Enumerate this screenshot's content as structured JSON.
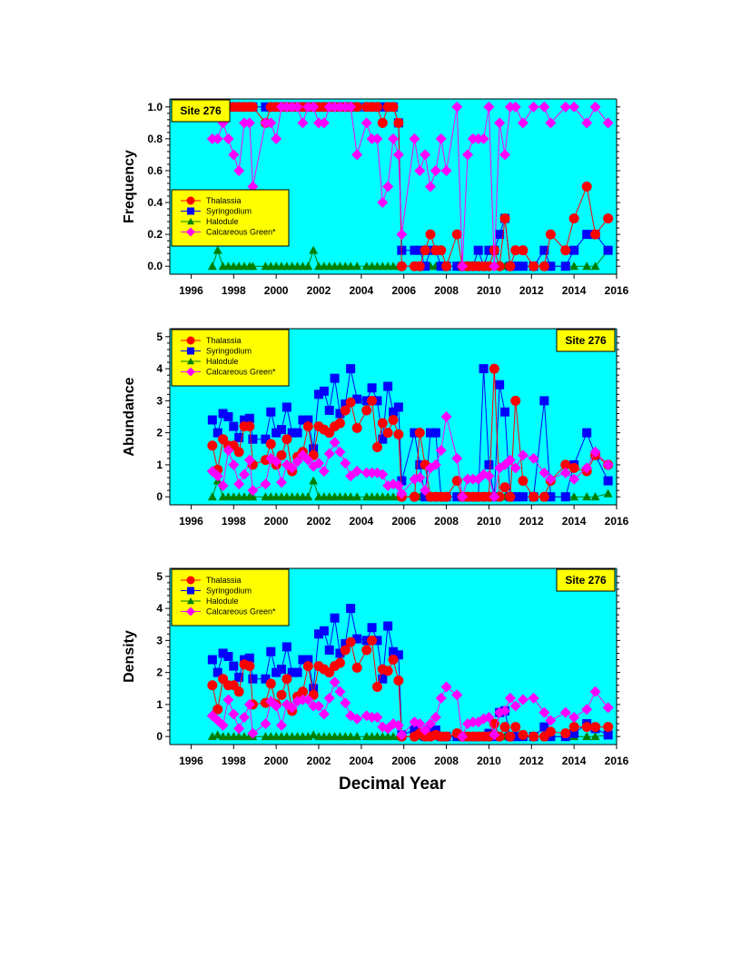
{
  "page": {
    "xlabel": "Decimal Year"
  },
  "legend_entries": [
    "Thalassia",
    "Syringodium",
    "Halodule",
    "Calcareous Green*"
  ],
  "colors": {
    "background": "#00ffff",
    "legend_bg": "#ffff00",
    "thalassia": "#ff0000",
    "syringodium": "#0000ff",
    "halodule": "#008000",
    "calcareous": "#ff00ff"
  },
  "chart_data": [
    {
      "type": "line",
      "title": "Site 276",
      "xlabel": "",
      "ylabel": "Frequency",
      "xlim": [
        1995,
        2016
      ],
      "ylim": [
        -0.05,
        1.05
      ],
      "xticks": [
        "1996",
        "1998",
        "2000",
        "2002",
        "2004",
        "2006",
        "2008",
        "2010",
        "2012",
        "2014",
        "2016"
      ],
      "yticks": [
        "0.0",
        "0.2",
        "0.4",
        "0.6",
        "0.8",
        "1.0"
      ],
      "legend_position": "middle-left",
      "site_label_position": "top-left",
      "x": [
        1997.0,
        1997.25,
        1997.5,
        1997.75,
        1998.0,
        1998.25,
        1998.5,
        1998.75,
        1998.9,
        1999.5,
        1999.75,
        2000.0,
        2000.25,
        2000.5,
        2000.75,
        2001.0,
        2001.25,
        2001.5,
        2001.75,
        2002.0,
        2002.25,
        2002.5,
        2002.75,
        2003.0,
        2003.25,
        2003.5,
        2003.8,
        2004.25,
        2004.5,
        2004.75,
        2005.0,
        2005.25,
        2005.5,
        2005.75,
        2005.9,
        2006.5,
        2006.75,
        2007.0,
        2007.25,
        2007.5,
        2007.75,
        2008.0,
        2008.5,
        2008.75,
        2009.0,
        2009.25,
        2009.5,
        2009.75,
        2010.0,
        2010.25,
        2010.5,
        2010.75,
        2011.0,
        2011.25,
        2011.6,
        2012.1,
        2012.6,
        2012.9,
        2013.6,
        2014.0,
        2014.6,
        2015.0,
        2015.6
      ],
      "series": [
        {
          "name": "Thalassia",
          "values": [
            1,
            1,
            1,
            1,
            1,
            1,
            1,
            1,
            1,
            0.9,
            1,
            1,
            1,
            1,
            1,
            1,
            1,
            1,
            1,
            1,
            1,
            1,
            1,
            1,
            1,
            1,
            1,
            1,
            1,
            1,
            0.9,
            1,
            1,
            0.9,
            0,
            0,
            0,
            0.1,
            0.2,
            0.1,
            0.1,
            0,
            0.2,
            0,
            0,
            0,
            0,
            0,
            0,
            0.1,
            0,
            0.3,
            0,
            0.1,
            0.1,
            0,
            0,
            0.2,
            0.1,
            0.3,
            0.5,
            0.2,
            0.3
          ]
        },
        {
          "name": "Syringodium",
          "values": [
            1,
            1,
            1,
            1,
            1,
            1,
            1,
            1,
            1,
            1,
            1,
            1,
            1,
            1,
            1,
            1,
            1,
            1,
            1,
            1,
            1,
            1,
            1,
            1,
            1,
            1,
            1,
            1,
            1,
            1,
            1,
            1,
            1,
            0.9,
            0.1,
            0.1,
            0.1,
            0,
            0.1,
            0.1,
            0,
            0,
            0,
            0,
            0,
            0,
            0.1,
            0,
            0.1,
            0.1,
            0.2,
            0.3,
            0,
            0,
            0,
            0,
            0.1,
            0,
            0,
            0.1,
            0.2,
            0.2,
            0.1
          ]
        },
        {
          "name": "Halodule",
          "values": [
            0,
            0.1,
            0,
            0,
            0,
            0,
            0,
            0,
            0,
            0,
            0,
            0,
            0,
            0,
            0,
            0,
            0,
            0,
            0.1,
            0,
            0,
            0,
            0,
            0,
            0,
            0,
            0,
            0,
            0,
            0,
            0,
            0,
            0,
            0,
            0,
            0,
            0,
            0,
            0,
            0,
            0,
            0,
            0,
            0,
            0,
            0,
            0,
            0,
            0,
            0,
            0,
            0,
            0,
            0,
            0,
            0,
            0,
            0,
            0,
            0,
            0,
            0,
            0.1
          ]
        },
        {
          "name": "Calcareous Green*",
          "values": [
            0.8,
            0.8,
            0.9,
            0.8,
            0.7,
            0.6,
            0.9,
            0.9,
            0.5,
            0.9,
            0.9,
            0.8,
            1,
            1,
            1,
            1,
            0.9,
            1,
            1,
            0.9,
            0.9,
            1,
            1,
            1,
            1,
            1,
            0.7,
            0.9,
            0.8,
            0.8,
            0.4,
            0.5,
            0.8,
            0.7,
            0.2,
            0.8,
            0.6,
            0.7,
            0.5,
            0.6,
            0.8,
            0.6,
            1,
            0,
            0.7,
            0.8,
            0.8,
            0.8,
            1,
            0,
            0.9,
            0.7,
            1,
            1,
            0.9,
            1,
            1,
            0.9,
            1,
            1,
            0.9,
            1,
            0.9
          ]
        }
      ]
    },
    {
      "type": "line",
      "title": "Site 276",
      "xlabel": "",
      "ylabel": "Abundance",
      "xlim": [
        1995,
        2016
      ],
      "ylim": [
        -0.25,
        5.25
      ],
      "xticks": [
        "1996",
        "1998",
        "2000",
        "2002",
        "2004",
        "2006",
        "2008",
        "2010",
        "2012",
        "2014",
        "2016"
      ],
      "yticks": [
        "0",
        "1",
        "2",
        "3",
        "4",
        "5"
      ],
      "legend_position": "top-left",
      "site_label_position": "top-right",
      "x": [
        1997.0,
        1997.25,
        1997.5,
        1997.75,
        1998.0,
        1998.25,
        1998.5,
        1998.75,
        1998.9,
        1999.5,
        1999.75,
        2000.0,
        2000.25,
        2000.5,
        2000.75,
        2001.0,
        2001.25,
        2001.5,
        2001.75,
        2002.0,
        2002.25,
        2002.5,
        2002.75,
        2003.0,
        2003.25,
        2003.5,
        2003.8,
        2004.25,
        2004.5,
        2004.75,
        2005.0,
        2005.25,
        2005.5,
        2005.75,
        2005.9,
        2006.5,
        2006.75,
        2007.0,
        2007.25,
        2007.5,
        2007.75,
        2008.0,
        2008.5,
        2008.75,
        2009.0,
        2009.25,
        2009.5,
        2009.75,
        2010.0,
        2010.25,
        2010.5,
        2010.75,
        2011.0,
        2011.25,
        2011.6,
        2012.1,
        2012.6,
        2012.9,
        2013.6,
        2014.0,
        2014.6,
        2015.0,
        2015.6
      ],
      "series": [
        {
          "name": "Thalassia",
          "values": [
            1.6,
            0.85,
            1.8,
            1.6,
            1.6,
            1.4,
            2.2,
            2.2,
            1.0,
            1.15,
            1.65,
            1.0,
            1.3,
            1.8,
            0.8,
            1.25,
            1.4,
            2.2,
            1.3,
            2.2,
            2.1,
            2.0,
            2.2,
            2.3,
            2.7,
            2.95,
            2.15,
            2.7,
            3.0,
            1.55,
            2.3,
            2.0,
            2.4,
            1.95,
            0,
            0,
            2.0,
            1.0,
            0,
            0,
            0,
            0,
            0.5,
            0,
            0,
            0,
            0,
            0,
            0,
            4.0,
            0,
            0.3,
            0,
            3.0,
            0.5,
            0,
            0,
            0.5,
            1.0,
            0.9,
            0.8,
            1.3,
            1.0
          ]
        },
        {
          "name": "Syringodium",
          "values": [
            2.4,
            2.0,
            2.6,
            2.5,
            2.2,
            1.85,
            2.4,
            2.45,
            1.8,
            1.8,
            2.65,
            2.0,
            2.1,
            2.8,
            2.0,
            2.0,
            2.4,
            2.4,
            1.5,
            3.2,
            3.3,
            2.7,
            3.7,
            2.6,
            2.9,
            4.0,
            3.05,
            3.0,
            3.4,
            3.0,
            1.8,
            3.45,
            2.65,
            2.8,
            0.5,
            2.0,
            1.0,
            0,
            2.0,
            2.0,
            0,
            0,
            0,
            0,
            0,
            0,
            0,
            4.0,
            1.0,
            0,
            3.5,
            2.65,
            0,
            0,
            0,
            0,
            3.0,
            0,
            0,
            1.0,
            2.0,
            1.3,
            0.5
          ]
        },
        {
          "name": "Halodule",
          "values": [
            0,
            0.5,
            0,
            0,
            0,
            0,
            0,
            0,
            0,
            0,
            0,
            0,
            0,
            0,
            0,
            0,
            0,
            0,
            0.5,
            0,
            0,
            0,
            0,
            0,
            0,
            0,
            0,
            0,
            0,
            0,
            0,
            0,
            0,
            0,
            0,
            0,
            0,
            0,
            0,
            0,
            0,
            0,
            0,
            0,
            0,
            0,
            0,
            0,
            0,
            0,
            0,
            0,
            0,
            0,
            0,
            0,
            0,
            0,
            0,
            0,
            0,
            0,
            0.1
          ]
        },
        {
          "name": "Calcareous Green*",
          "values": [
            0.8,
            0.65,
            0.35,
            1.45,
            1.0,
            0.4,
            0.7,
            1.15,
            0.2,
            0.4,
            1.2,
            1.1,
            0.45,
            1.0,
            0.9,
            1.1,
            1.3,
            1.15,
            0.95,
            1.05,
            0.8,
            1.35,
            1.7,
            1.4,
            1.05,
            0.65,
            0.8,
            0.75,
            0.75,
            0.75,
            0.7,
            0.35,
            0.4,
            0.35,
            0.1,
            0.55,
            0.6,
            0.2,
            0.9,
            1.0,
            1.45,
            2.5,
            1.2,
            0,
            0.55,
            0.55,
            0.55,
            0.7,
            0.65,
            0,
            0.9,
            1.0,
            1.15,
            0.9,
            1.3,
            1.2,
            0.75,
            0.55,
            0.75,
            0.55,
            0.9,
            1.4,
            1.0
          ]
        }
      ]
    },
    {
      "type": "line",
      "title": "Site 276",
      "xlabel": "Decimal Year",
      "ylabel": "Density",
      "xlim": [
        1995,
        2016
      ],
      "ylim": [
        -0.25,
        5.25
      ],
      "xticks": [
        "1996",
        "1998",
        "2000",
        "2002",
        "2004",
        "2006",
        "2008",
        "2010",
        "2012",
        "2014",
        "2016"
      ],
      "yticks": [
        "0",
        "1",
        "2",
        "3",
        "4",
        "5"
      ],
      "legend_position": "top-left",
      "site_label_position": "top-right",
      "x": [
        1997.0,
        1997.25,
        1997.5,
        1997.75,
        1998.0,
        1998.25,
        1998.5,
        1998.75,
        1998.9,
        1999.5,
        1999.75,
        2000.0,
        2000.25,
        2000.5,
        2000.75,
        2001.0,
        2001.25,
        2001.5,
        2001.75,
        2002.0,
        2002.25,
        2002.5,
        2002.75,
        2003.0,
        2003.25,
        2003.5,
        2003.8,
        2004.25,
        2004.5,
        2004.75,
        2005.0,
        2005.25,
        2005.5,
        2005.75,
        2005.9,
        2006.5,
        2006.75,
        2007.0,
        2007.25,
        2007.5,
        2007.75,
        2008.0,
        2008.5,
        2008.75,
        2009.0,
        2009.25,
        2009.5,
        2009.75,
        2010.0,
        2010.25,
        2010.5,
        2010.75,
        2011.0,
        2011.25,
        2011.6,
        2012.1,
        2012.6,
        2012.9,
        2013.6,
        2014.0,
        2014.6,
        2015.0,
        2015.6
      ],
      "series": [
        {
          "name": "Thalassia",
          "values": [
            1.6,
            0.85,
            1.8,
            1.6,
            1.6,
            1.4,
            2.25,
            2.2,
            1.0,
            1.05,
            1.65,
            1.0,
            1.3,
            1.8,
            0.8,
            1.25,
            1.4,
            2.2,
            1.3,
            2.2,
            2.1,
            2.0,
            2.2,
            2.3,
            2.7,
            2.95,
            2.15,
            2.7,
            3.0,
            1.55,
            2.1,
            2.05,
            2.4,
            1.75,
            0,
            0,
            0.1,
            0,
            0,
            0.05,
            0,
            0,
            0.1,
            0,
            0,
            0,
            0,
            0,
            0,
            0.4,
            0,
            0.3,
            0,
            0.3,
            0.05,
            0,
            0,
            0.15,
            0.1,
            0.3,
            0.3,
            0.3,
            0.3
          ]
        },
        {
          "name": "Syringodium",
          "values": [
            2.4,
            2.0,
            2.6,
            2.5,
            2.2,
            1.85,
            2.4,
            2.45,
            1.8,
            1.8,
            2.65,
            2.0,
            2.1,
            2.8,
            2.0,
            2.0,
            2.4,
            2.4,
            1.5,
            3.2,
            3.3,
            2.7,
            3.7,
            2.6,
            2.9,
            4.0,
            3.05,
            3.0,
            3.4,
            3.0,
            1.8,
            3.45,
            2.65,
            2.55,
            0.05,
            0.2,
            0.1,
            0,
            0.2,
            0.2,
            0,
            0,
            0,
            0,
            0,
            0,
            0,
            0,
            0.1,
            0,
            0.75,
            0.8,
            0,
            0,
            0,
            0,
            0.3,
            0,
            0,
            0.1,
            0.4,
            0.25,
            0.05
          ]
        },
        {
          "name": "Halodule",
          "values": [
            0,
            0.05,
            0,
            0,
            0,
            0,
            0,
            0,
            0,
            0,
            0,
            0,
            0,
            0,
            0,
            0,
            0,
            0,
            0.05,
            0,
            0,
            0,
            0,
            0,
            0,
            0,
            0,
            0,
            0,
            0,
            0,
            0,
            0,
            0,
            0,
            0,
            0,
            0,
            0,
            0,
            0,
            0,
            0,
            0,
            0,
            0,
            0,
            0,
            0,
            0,
            0,
            0,
            0,
            0,
            0,
            0,
            0,
            0,
            0,
            0,
            0,
            0,
            0.05
          ]
        },
        {
          "name": "Calcareous Green*",
          "values": [
            0.65,
            0.5,
            0.35,
            1.15,
            0.7,
            0.25,
            0.6,
            1.0,
            0.1,
            0.4,
            1.1,
            0.95,
            0.35,
            1.0,
            0.9,
            1.1,
            1.15,
            1.15,
            0.95,
            0.95,
            0.7,
            1.2,
            1.7,
            1.4,
            1.05,
            0.65,
            0.55,
            0.65,
            0.6,
            0.6,
            0.3,
            0.25,
            0.4,
            0.35,
            0.05,
            0.45,
            0.4,
            0.2,
            0.4,
            0.6,
            1.2,
            1.55,
            1.3,
            0,
            0.4,
            0.45,
            0.45,
            0.55,
            0.6,
            0.05,
            0.75,
            0.8,
            1.2,
            0.95,
            1.15,
            1.2,
            0.75,
            0.5,
            0.75,
            0.6,
            0.85,
            1.4,
            0.9
          ]
        }
      ]
    }
  ]
}
